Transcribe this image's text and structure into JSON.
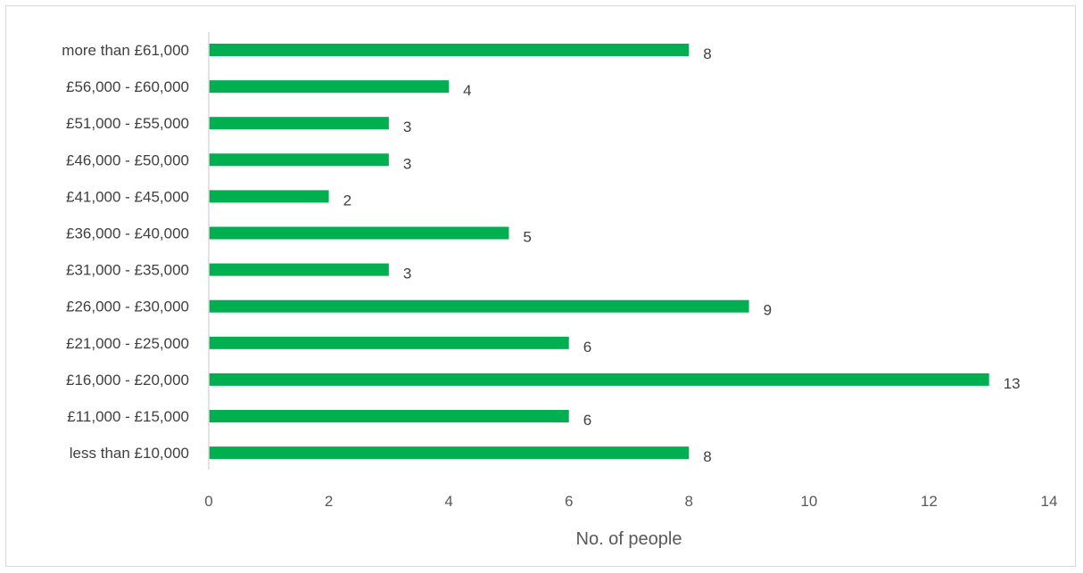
{
  "chart_data": {
    "type": "bar",
    "orientation": "horizontal",
    "categories": [
      "less than £10,000",
      "£11,000 - £15,000",
      "£16,000 - £20,000",
      "£21,000 - £25,000",
      "£26,000 - £30,000",
      "£31,000 - £35,000",
      "£36,000 - £40,000",
      "£41,000 - £45,000",
      "£46,000 - £50,000",
      "£51,000 - £55,000",
      "£56,000 - £60,000",
      "more than £61,000"
    ],
    "values": [
      8,
      6,
      13,
      6,
      9,
      3,
      5,
      2,
      3,
      3,
      4,
      8
    ],
    "xlabel": "No. of people",
    "ylabel": "",
    "xlim": [
      0,
      14
    ],
    "xticks": [
      0,
      2,
      4,
      6,
      8,
      10,
      12,
      14
    ],
    "grid": false,
    "legend": "none",
    "data_labels": true,
    "bar_color": "#00b050",
    "text_color": "#404040",
    "tick_color": "#595959",
    "axis_color": "#d9d9d9"
  }
}
